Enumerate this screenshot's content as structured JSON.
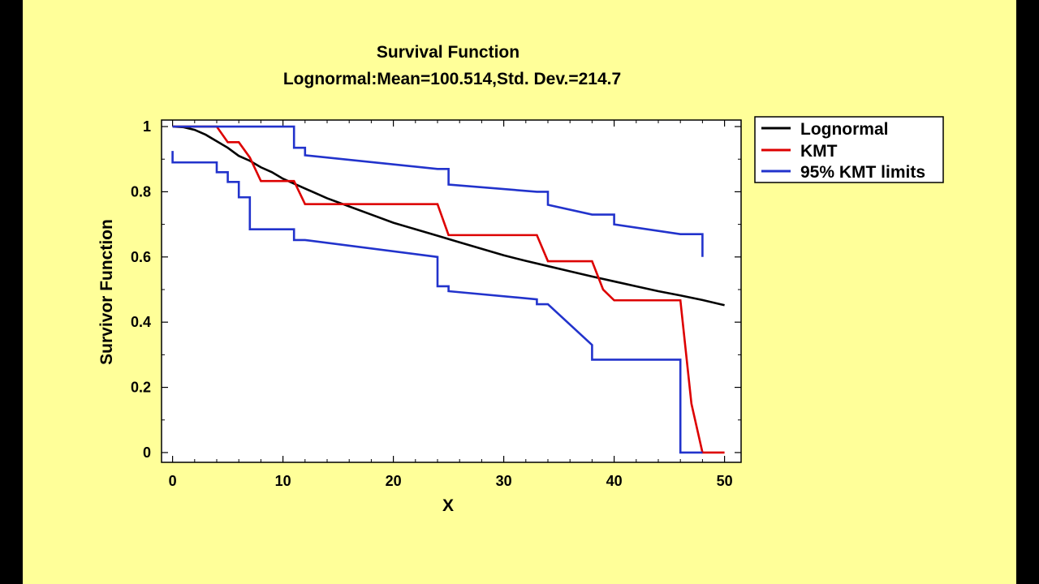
{
  "chart_data": {
    "type": "line",
    "title": "Survival Function",
    "subtitle": "Lognormal:Mean=100.514,Std. Dev.=214.7",
    "xlabel": "X",
    "ylabel": "Survivor Function",
    "xlim": [
      -1,
      51.5
    ],
    "ylim": [
      -0.03,
      1.02
    ],
    "xticks": [
      0,
      10,
      20,
      30,
      40,
      50
    ],
    "yticks": [
      0,
      0.2,
      0.4,
      0.6,
      0.8,
      1
    ],
    "xtick_labels": [
      "0",
      "10",
      "20",
      "30",
      "40",
      "50"
    ],
    "ytick_labels": [
      "0",
      "0.2",
      "0.4",
      "0.6",
      "0.8",
      "1"
    ],
    "grid": false,
    "legend_position": "top-right outside plot",
    "series": [
      {
        "name": "Lognormal",
        "color": "#000000",
        "step": false,
        "points": [
          [
            0,
            1.0
          ],
          [
            1,
            0.998
          ],
          [
            2,
            0.99
          ],
          [
            3,
            0.975
          ],
          [
            4,
            0.955
          ],
          [
            5,
            0.935
          ],
          [
            6,
            0.91
          ],
          [
            7,
            0.895
          ],
          [
            8,
            0.875
          ],
          [
            9,
            0.86
          ],
          [
            10,
            0.84
          ],
          [
            12,
            0.81
          ],
          [
            14,
            0.78
          ],
          [
            16,
            0.755
          ],
          [
            18,
            0.73
          ],
          [
            20,
            0.705
          ],
          [
            22,
            0.685
          ],
          [
            24,
            0.665
          ],
          [
            26,
            0.645
          ],
          [
            28,
            0.625
          ],
          [
            30,
            0.605
          ],
          [
            32,
            0.588
          ],
          [
            34,
            0.572
          ],
          [
            36,
            0.556
          ],
          [
            38,
            0.54
          ],
          [
            40,
            0.525
          ],
          [
            42,
            0.51
          ],
          [
            44,
            0.495
          ],
          [
            46,
            0.482
          ],
          [
            48,
            0.468
          ],
          [
            50,
            0.452
          ]
        ]
      },
      {
        "name": "KMT",
        "color": "#dd0000",
        "step": true,
        "points": [
          [
            0,
            1.0
          ],
          [
            4,
            1.0
          ],
          [
            5,
            0.952
          ],
          [
            6,
            0.952
          ],
          [
            7,
            0.905
          ],
          [
            8,
            0.833
          ],
          [
            11,
            0.833
          ],
          [
            12,
            0.762
          ],
          [
            24,
            0.762
          ],
          [
            25,
            0.667
          ],
          [
            33,
            0.667
          ],
          [
            34,
            0.587
          ],
          [
            38,
            0.587
          ],
          [
            39,
            0.5
          ],
          [
            40,
            0.467
          ],
          [
            46,
            0.467
          ],
          [
            47,
            0.15
          ],
          [
            48,
            0.0
          ],
          [
            50,
            0.0
          ]
        ]
      },
      {
        "name": "95% KMT limits",
        "color": "#2233cc",
        "step": true,
        "segments": [
          [
            [
              0,
              1.0
            ],
            [
              11,
              1.0
            ],
            [
              11,
              0.935
            ],
            [
              12,
              0.935
            ],
            [
              12,
              0.912
            ],
            [
              24,
              0.87
            ],
            [
              25,
              0.87
            ],
            [
              25,
              0.822
            ],
            [
              33,
              0.8
            ],
            [
              34,
              0.8
            ],
            [
              34,
              0.76
            ],
            [
              38,
              0.73
            ],
            [
              40,
              0.73
            ],
            [
              40,
              0.7
            ],
            [
              46,
              0.67
            ],
            [
              48,
              0.67
            ],
            [
              48,
              0.6
            ]
          ],
          [
            [
              0,
              0.925
            ],
            [
              0,
              0.89
            ],
            [
              4,
              0.89
            ],
            [
              4,
              0.86
            ],
            [
              5,
              0.86
            ],
            [
              5,
              0.83
            ],
            [
              6,
              0.83
            ],
            [
              6,
              0.783
            ],
            [
              7,
              0.783
            ],
            [
              7,
              0.685
            ],
            [
              11,
              0.685
            ],
            [
              11,
              0.652
            ],
            [
              12,
              0.652
            ],
            [
              24,
              0.6
            ],
            [
              24,
              0.51
            ],
            [
              25,
              0.51
            ],
            [
              25,
              0.495
            ],
            [
              33,
              0.47
            ],
            [
              33,
              0.455
            ],
            [
              34,
              0.455
            ],
            [
              38,
              0.33
            ],
            [
              38,
              0.285
            ],
            [
              46,
              0.285
            ],
            [
              46,
              0.0
            ],
            [
              48,
              0.0
            ]
          ]
        ]
      }
    ]
  }
}
